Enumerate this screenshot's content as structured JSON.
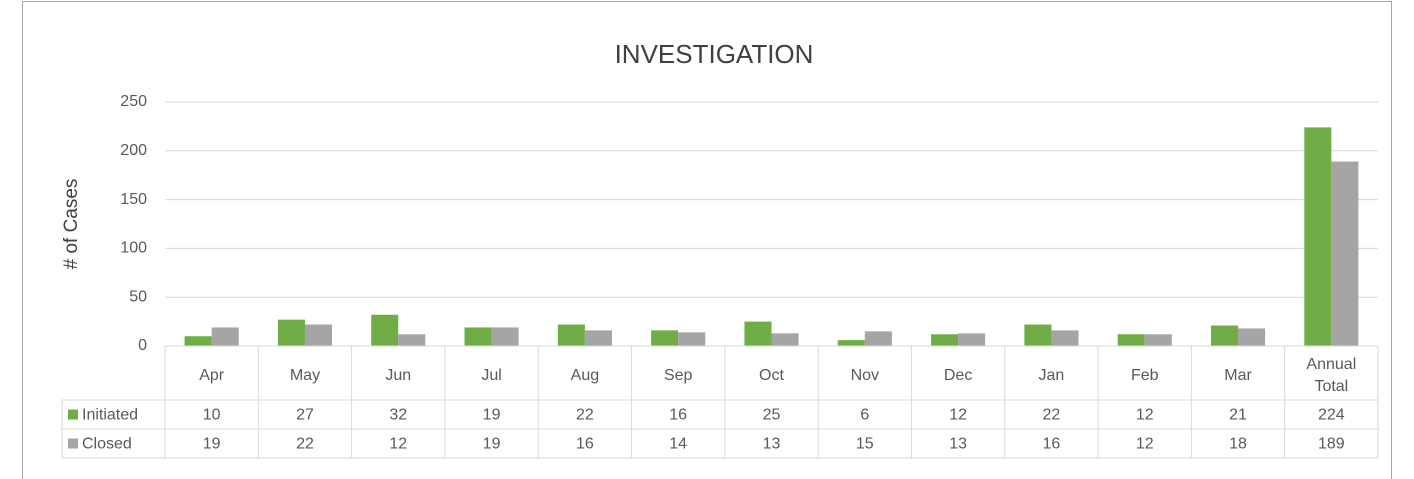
{
  "chart_data": {
    "type": "bar",
    "title": "INVESTIGATION",
    "ylabel": "# of Cases",
    "categories": [
      "Apr",
      "May",
      "Jun",
      "Jul",
      "Aug",
      "Sep",
      "Oct",
      "Nov",
      "Dec",
      "Jan",
      "Feb",
      "Mar",
      "Annual Total"
    ],
    "series": [
      {
        "name": "Initiated",
        "color": "#70ad47",
        "values": [
          10,
          27,
          32,
          19,
          22,
          16,
          25,
          6,
          12,
          22,
          12,
          21,
          224
        ]
      },
      {
        "name": "Closed",
        "color": "#a5a5a5",
        "values": [
          19,
          22,
          12,
          19,
          16,
          14,
          13,
          15,
          13,
          16,
          12,
          18,
          189
        ]
      }
    ],
    "ylim": [
      0,
      250
    ],
    "yticks": [
      0,
      50,
      100,
      150,
      200,
      250
    ],
    "grid": true,
    "data_table": true
  }
}
